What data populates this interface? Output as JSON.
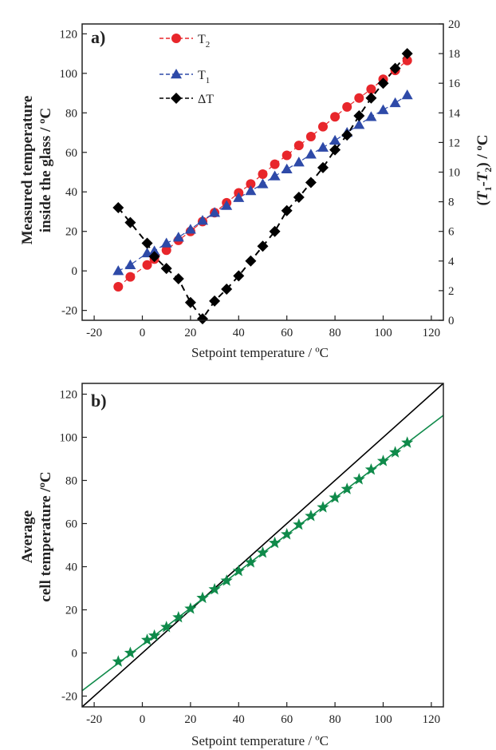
{
  "chart_data": [
    {
      "panel_label": "a)",
      "type": "line",
      "xlabel": "Setpoint temperature / ºC",
      "ylabel_left_line1": "Measured temperature",
      "ylabel_left_line2": "inside the glass / ºC",
      "ylabel_right": "(T1-T2) / ºC",
      "xlim": [
        -25,
        125
      ],
      "ylim_left": [
        -25,
        125
      ],
      "ylim_right": [
        0,
        20
      ],
      "x_ticks": [
        -20,
        0,
        20,
        40,
        60,
        80,
        100,
        120
      ],
      "y_left_ticks": [
        -20,
        0,
        20,
        40,
        60,
        80,
        100,
        120
      ],
      "y_right_ticks": [
        0,
        2,
        4,
        6,
        8,
        10,
        12,
        14,
        16,
        18,
        20
      ],
      "legend_position": "top-left",
      "series": [
        {
          "name": "T2",
          "axis": "left",
          "color": "#e8262b",
          "marker": "circle",
          "x": [
            -10,
            -5,
            2,
            5,
            10,
            15,
            20,
            25,
            30,
            35,
            40,
            45,
            50,
            55,
            60,
            65,
            70,
            75,
            80,
            85,
            90,
            95,
            100,
            105,
            110
          ],
          "y": [
            -8,
            -3,
            3,
            6,
            10.5,
            15.5,
            20,
            25,
            29.5,
            34.5,
            39.5,
            44,
            49,
            54,
            58.5,
            63.5,
            68,
            73,
            78,
            83,
            87.5,
            92,
            97,
            101.5,
            106.5
          ]
        },
        {
          "name": "T1",
          "axis": "left",
          "color": "#2e4aa8",
          "marker": "triangle",
          "x": [
            -10,
            -5,
            2,
            5,
            10,
            15,
            20,
            25,
            30,
            35,
            40,
            45,
            50,
            55,
            60,
            65,
            70,
            75,
            80,
            85,
            90,
            95,
            100,
            105,
            110
          ],
          "y": [
            0,
            3,
            9,
            10,
            14,
            17,
            21,
            25.5,
            29.5,
            33,
            37,
            40.5,
            44,
            48,
            51.5,
            55,
            59,
            62.5,
            66,
            70,
            74,
            78,
            81.5,
            85,
            89
          ]
        },
        {
          "name": "ΔT",
          "axis": "right",
          "color": "#000000",
          "marker": "diamond",
          "x": [
            -10,
            -5,
            2,
            5,
            10,
            15,
            20,
            25,
            30,
            35,
            40,
            45,
            50,
            55,
            60,
            65,
            70,
            75,
            80,
            85,
            90,
            95,
            100,
            105,
            110
          ],
          "y": [
            7.6,
            6.6,
            5.2,
            4.3,
            3.5,
            2.8,
            1.2,
            0.1,
            1.3,
            2.1,
            3.0,
            4.0,
            5.0,
            6.0,
            7.4,
            8.3,
            9.3,
            10.3,
            11.5,
            12.5,
            13.8,
            15.0,
            16.0,
            17.0,
            18.0
          ]
        }
      ]
    },
    {
      "panel_label": "b)",
      "type": "scatter",
      "xlabel": "Setpoint temperature / ºC",
      "ylabel_line1": "Average",
      "ylabel_line2": "cell temperature /ºC",
      "xlim": [
        -25,
        125
      ],
      "ylim": [
        -25,
        125
      ],
      "x_ticks": [
        -20,
        0,
        20,
        40,
        60,
        80,
        100,
        120
      ],
      "y_ticks": [
        -20,
        0,
        20,
        40,
        60,
        80,
        100,
        120
      ],
      "series": [
        {
          "marker": "star",
          "color": "#0f8a4a",
          "x": [
            -10,
            -5,
            2,
            5,
            10,
            15,
            20,
            25,
            30,
            35,
            40,
            45,
            50,
            55,
            60,
            65,
            70,
            75,
            80,
            85,
            90,
            95,
            100,
            105,
            110
          ],
          "y": [
            -4,
            0,
            6,
            8,
            12,
            16.5,
            20.5,
            25.5,
            29.5,
            33.5,
            38,
            42,
            46.5,
            51,
            55,
            59.5,
            63.5,
            67.5,
            72,
            76,
            80.5,
            85,
            89,
            93,
            97.5
          ]
        }
      ],
      "lines": [
        {
          "role": "identity",
          "color": "#000000",
          "x": [
            -25,
            125
          ],
          "y": [
            -25,
            125
          ]
        },
        {
          "role": "fit",
          "color": "#0f8a4a",
          "x": [
            -25,
            125
          ],
          "y": [
            -17.5,
            110.2
          ]
        }
      ]
    }
  ]
}
